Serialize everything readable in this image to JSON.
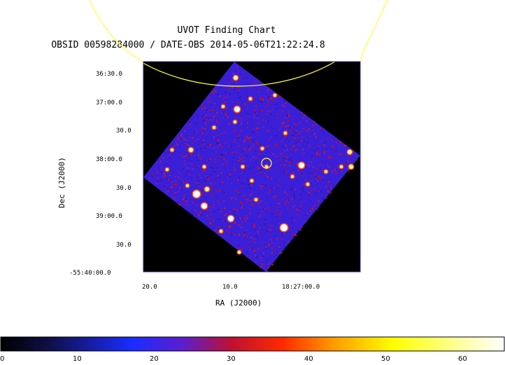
{
  "title": "UVOT Finding Chart",
  "subtitle": "OBSID 00598284000 / DATE-OBS 2014-05-06T21:22:24.8",
  "y_axis": {
    "label": "Dec (J2000)",
    "ticks": [
      "36:30.0",
      "37:00.0",
      "30.0",
      "38:00.0",
      "30.0",
      "39:00.0",
      "30.0",
      "-55:40:00.0"
    ]
  },
  "x_axis": {
    "label": "RA (J2000)",
    "ticks": [
      "20.0",
      "10.0",
      "18:27:00.0"
    ]
  },
  "colorbar": {
    "ticks": [
      "0",
      "10",
      "20",
      "30",
      "40",
      "50",
      "60"
    ]
  },
  "colors": {
    "background": "#000000",
    "field": "#3a1fd8",
    "noise": "#c0102a",
    "marker": "#ffff40",
    "frame": "#2020c0"
  }
}
